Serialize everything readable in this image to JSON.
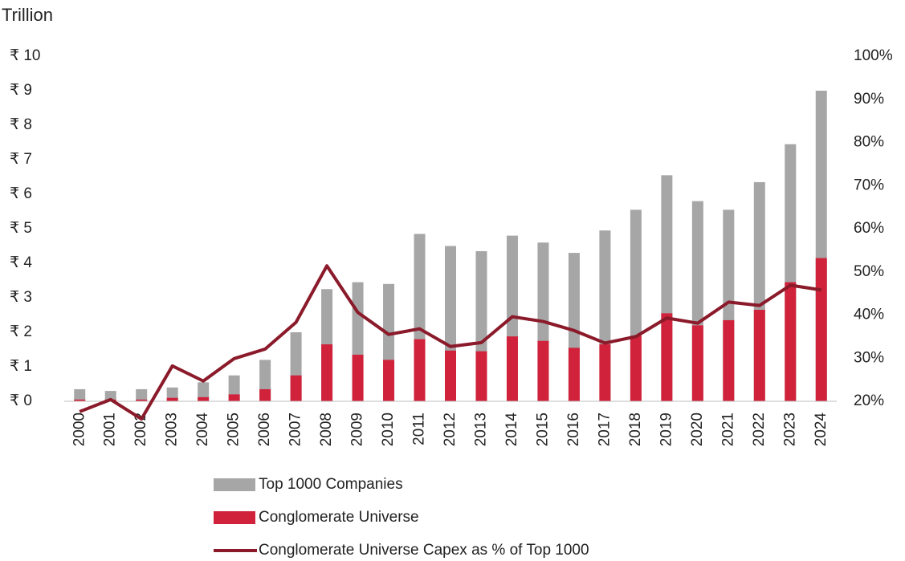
{
  "chart_data": {
    "type": "bar_line",
    "y_label": "Trillion",
    "categories": [
      "2000",
      "2001",
      "2002",
      "2003",
      "2004",
      "2005",
      "2006",
      "2007",
      "2008",
      "2009",
      "2010",
      "2011",
      "2012",
      "2013",
      "2014",
      "2015",
      "2016",
      "2017",
      "2018",
      "2019",
      "2020",
      "2021",
      "2022",
      "2023",
      "2024"
    ],
    "series": [
      {
        "name": "Top 1000 Companies",
        "color": "#a6a6a6",
        "kind": "bar",
        "values": [
          0.35,
          0.3,
          0.35,
          0.4,
          0.55,
          0.75,
          1.2,
          2.0,
          3.25,
          3.45,
          3.4,
          4.85,
          4.5,
          4.35,
          4.8,
          4.6,
          4.3,
          4.95,
          5.55,
          6.55,
          5.8,
          5.55,
          6.35,
          7.45,
          9.0
        ]
      },
      {
        "name": "Conglomerate Universe",
        "color": "#d0223a",
        "kind": "bar",
        "values": [
          0.05,
          0.05,
          0.05,
          0.1,
          0.12,
          0.2,
          0.35,
          0.75,
          1.65,
          1.35,
          1.2,
          1.8,
          1.47,
          1.45,
          1.88,
          1.75,
          1.55,
          1.65,
          1.9,
          2.55,
          2.2,
          2.35,
          2.65,
          3.45,
          4.15
        ]
      },
      {
        "name": "Conglomerate Universe Capex as % of Top 1000",
        "color": "#8b1a2a",
        "kind": "line",
        "axis": "y2",
        "values": [
          17.6,
          20.4,
          15.9,
          28.2,
          24.7,
          29.9,
          32.1,
          38.3,
          51.4,
          40.6,
          35.5,
          36.8,
          32.7,
          33.6,
          39.6,
          38.5,
          36.4,
          33.5,
          35.0,
          39.3,
          38.1,
          43.0,
          42.2,
          46.9,
          45.8
        ]
      }
    ],
    "ylim": [
      0,
      10
    ],
    "yticks": [
      {
        "value": 0,
        "label": "₹ 0"
      },
      {
        "value": 1,
        "label": "₹ 1"
      },
      {
        "value": 2,
        "label": "₹ 2"
      },
      {
        "value": 3,
        "label": "₹ 3"
      },
      {
        "value": 4,
        "label": "₹ 4"
      },
      {
        "value": 5,
        "label": "₹ 5"
      },
      {
        "value": 6,
        "label": "₹ 6"
      },
      {
        "value": 7,
        "label": "₹ 7"
      },
      {
        "value": 8,
        "label": "₹ 8"
      },
      {
        "value": 9,
        "label": "₹ 9"
      },
      {
        "value": 10,
        "label": "₹ 10"
      }
    ],
    "y2lim": [
      20,
      100
    ],
    "y2ticks": [
      {
        "value": 20,
        "label": "20%"
      },
      {
        "value": 30,
        "label": "30%"
      },
      {
        "value": 40,
        "label": "40%"
      },
      {
        "value": 50,
        "label": "50%"
      },
      {
        "value": 60,
        "label": "60%"
      },
      {
        "value": 70,
        "label": "70%"
      },
      {
        "value": 80,
        "label": "80%"
      },
      {
        "value": 90,
        "label": "90%"
      },
      {
        "value": 100,
        "label": "100%"
      }
    ],
    "grid": false,
    "legend": "bottom"
  }
}
